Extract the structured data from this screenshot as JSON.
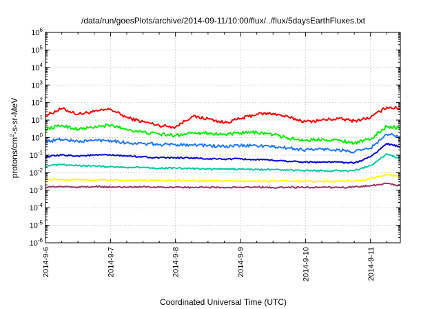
{
  "chart_data": {
    "type": "line",
    "title": "/data/run/goesPlots/archive/2014-09-11/10:00/flux/../flux/5daysEarthFluxes.txt",
    "xlabel": "Coordinated Universal Time (UTC)",
    "ylabel": "protons/cm2-s-sr-MeV",
    "ylabel_parts": {
      "base": "protons/cm",
      "sup": "2",
      "rest": "-s-sr-MeV"
    },
    "yscale": "log",
    "ylim": [
      1e-06,
      1000000.0
    ],
    "y_tick_labels": [
      {
        "value": 1e-06,
        "base": "10",
        "exp": "-6"
      },
      {
        "value": 1e-05,
        "base": "10",
        "exp": "-5"
      },
      {
        "value": 0.0001,
        "base": "10",
        "exp": "-4"
      },
      {
        "value": 0.001,
        "base": "10",
        "exp": "-3"
      },
      {
        "value": 0.01,
        "base": "10",
        "exp": "-2"
      },
      {
        "value": 0.1,
        "base": "10",
        "exp": "-1"
      },
      {
        "value": 1,
        "base": "10",
        "exp": "0"
      },
      {
        "value": 10.0,
        "base": "10",
        "exp": "1"
      },
      {
        "value": 100.0,
        "base": "10",
        "exp": "2"
      },
      {
        "value": 1000.0,
        "base": "10",
        "exp": "3"
      },
      {
        "value": 10000.0,
        "base": "10",
        "exp": "4"
      },
      {
        "value": 100000.0,
        "base": "10",
        "exp": "5"
      },
      {
        "value": 1000000.0,
        "base": "10",
        "exp": "6"
      }
    ],
    "xlim": [
      "2014-09-06 00:00",
      "2014-09-11 11:00"
    ],
    "x_ticks": [
      "2014-9-6",
      "2014-9-7",
      "2014-9-8",
      "2014-9-9",
      "2014-9-10",
      "2014-9-11"
    ],
    "x_tick_dates": [
      "2014-09-06",
      "2014-09-07",
      "2014-09-08",
      "2014-09-09",
      "2014-09-10",
      "2014-09-11"
    ],
    "grid": true,
    "legend": "none",
    "series": [
      {
        "color": "#ff0000",
        "x": [
          "2014-09-06 00:00",
          "2014-09-06 06:00",
          "2014-09-06 12:00",
          "2014-09-06 18:00",
          "2014-09-07 00:00",
          "2014-09-07 06:00",
          "2014-09-07 12:00",
          "2014-09-07 18:00",
          "2014-09-08 00:00",
          "2014-09-08 06:00",
          "2014-09-08 12:00",
          "2014-09-08 18:00",
          "2014-09-09 00:00",
          "2014-09-09 06:00",
          "2014-09-09 12:00",
          "2014-09-09 18:00",
          "2014-09-10 00:00",
          "2014-09-10 06:00",
          "2014-09-10 12:00",
          "2014-09-10 18:00",
          "2014-09-11 00:00",
          "2014-09-11 06:00",
          "2014-09-11 11:00"
        ],
        "values": [
          18,
          45,
          22,
          30,
          42,
          14,
          8,
          5,
          4,
          16,
          12,
          7,
          12,
          22,
          24,
          14,
          8,
          10,
          12,
          9,
          14,
          55,
          45
        ]
      },
      {
        "color": "#00ee00",
        "x": [
          "2014-09-06 00:00",
          "2014-09-06 06:00",
          "2014-09-06 12:00",
          "2014-09-06 18:00",
          "2014-09-07 00:00",
          "2014-09-07 06:00",
          "2014-09-07 12:00",
          "2014-09-07 18:00",
          "2014-09-08 00:00",
          "2014-09-08 06:00",
          "2014-09-08 12:00",
          "2014-09-08 18:00",
          "2014-09-09 00:00",
          "2014-09-09 06:00",
          "2014-09-09 12:00",
          "2014-09-09 18:00",
          "2014-09-10 00:00",
          "2014-09-10 06:00",
          "2014-09-10 12:00",
          "2014-09-10 18:00",
          "2014-09-11 00:00",
          "2014-09-11 06:00",
          "2014-09-11 11:00"
        ],
        "values": [
          3,
          5,
          3,
          4,
          5,
          3,
          2,
          1.6,
          1.3,
          2,
          1.8,
          1.5,
          1.8,
          2,
          1.5,
          0.9,
          0.7,
          0.8,
          0.7,
          0.5,
          0.8,
          4.5,
          3.5
        ]
      },
      {
        "color": "#1e78ff",
        "x": [
          "2014-09-06 00:00",
          "2014-09-06 06:00",
          "2014-09-06 12:00",
          "2014-09-06 18:00",
          "2014-09-07 00:00",
          "2014-09-07 06:00",
          "2014-09-07 12:00",
          "2014-09-07 18:00",
          "2014-09-08 00:00",
          "2014-09-08 06:00",
          "2014-09-08 12:00",
          "2014-09-08 18:00",
          "2014-09-09 00:00",
          "2014-09-09 06:00",
          "2014-09-09 12:00",
          "2014-09-09 18:00",
          "2014-09-10 00:00",
          "2014-09-10 06:00",
          "2014-09-10 12:00",
          "2014-09-10 18:00",
          "2014-09-11 00:00",
          "2014-09-11 06:00",
          "2014-09-11 11:00"
        ],
        "values": [
          0.6,
          0.8,
          0.6,
          0.7,
          0.7,
          0.5,
          0.45,
          0.4,
          0.4,
          0.4,
          0.35,
          0.3,
          0.35,
          0.35,
          0.3,
          0.25,
          0.2,
          0.22,
          0.2,
          0.15,
          0.25,
          1.5,
          1.2
        ]
      },
      {
        "color": "#0000d8",
        "x": [
          "2014-09-06 00:00",
          "2014-09-06 06:00",
          "2014-09-06 12:00",
          "2014-09-06 18:00",
          "2014-09-07 00:00",
          "2014-09-07 06:00",
          "2014-09-07 12:00",
          "2014-09-07 18:00",
          "2014-09-08 00:00",
          "2014-09-08 06:00",
          "2014-09-08 12:00",
          "2014-09-08 18:00",
          "2014-09-09 00:00",
          "2014-09-09 06:00",
          "2014-09-09 12:00",
          "2014-09-09 18:00",
          "2014-09-10 00:00",
          "2014-09-10 06:00",
          "2014-09-10 12:00",
          "2014-09-10 18:00",
          "2014-09-11 00:00",
          "2014-09-11 06:00",
          "2014-09-11 11:00"
        ],
        "values": [
          0.08,
          0.1,
          0.09,
          0.1,
          0.1,
          0.09,
          0.08,
          0.07,
          0.07,
          0.07,
          0.06,
          0.06,
          0.06,
          0.055,
          0.05,
          0.045,
          0.04,
          0.04,
          0.04,
          0.035,
          0.08,
          0.45,
          0.3
        ]
      },
      {
        "color": "#00c8a0",
        "x": [
          "2014-09-06 00:00",
          "2014-09-06 06:00",
          "2014-09-06 12:00",
          "2014-09-06 18:00",
          "2014-09-07 00:00",
          "2014-09-07 06:00",
          "2014-09-07 12:00",
          "2014-09-07 18:00",
          "2014-09-08 00:00",
          "2014-09-08 06:00",
          "2014-09-08 12:00",
          "2014-09-08 18:00",
          "2014-09-09 00:00",
          "2014-09-09 06:00",
          "2014-09-09 12:00",
          "2014-09-09 18:00",
          "2014-09-10 00:00",
          "2014-09-10 06:00",
          "2014-09-10 12:00",
          "2014-09-10 18:00",
          "2014-09-11 00:00",
          "2014-09-11 06:00",
          "2014-09-11 11:00"
        ],
        "values": [
          0.025,
          0.028,
          0.025,
          0.024,
          0.022,
          0.02,
          0.02,
          0.018,
          0.018,
          0.017,
          0.016,
          0.016,
          0.016,
          0.015,
          0.015,
          0.014,
          0.013,
          0.013,
          0.013,
          0.013,
          0.025,
          0.12,
          0.06
        ]
      },
      {
        "color": "#ffff00",
        "x": [
          "2014-09-06 00:00",
          "2014-09-06 06:00",
          "2014-09-06 12:00",
          "2014-09-06 18:00",
          "2014-09-07 00:00",
          "2014-09-07 06:00",
          "2014-09-07 12:00",
          "2014-09-07 18:00",
          "2014-09-08 00:00",
          "2014-09-08 06:00",
          "2014-09-08 12:00",
          "2014-09-08 18:00",
          "2014-09-09 00:00",
          "2014-09-09 06:00",
          "2014-09-09 12:00",
          "2014-09-09 18:00",
          "2014-09-10 00:00",
          "2014-09-10 06:00",
          "2014-09-10 12:00",
          "2014-09-10 18:00",
          "2014-09-11 00:00",
          "2014-09-11 06:00",
          "2014-09-11 11:00"
        ],
        "values": [
          0.004,
          0.004,
          0.004,
          0.0038,
          0.0038,
          0.0036,
          0.0036,
          0.0035,
          0.0035,
          0.0035,
          0.0034,
          0.0034,
          0.0034,
          0.0033,
          0.0033,
          0.0033,
          0.0032,
          0.0032,
          0.0032,
          0.0032,
          0.0045,
          0.008,
          0.006
        ]
      },
      {
        "color": "#993366",
        "x": [
          "2014-09-06 00:00",
          "2014-09-06 06:00",
          "2014-09-06 12:00",
          "2014-09-06 18:00",
          "2014-09-07 00:00",
          "2014-09-07 06:00",
          "2014-09-07 12:00",
          "2014-09-07 18:00",
          "2014-09-08 00:00",
          "2014-09-08 06:00",
          "2014-09-08 12:00",
          "2014-09-08 18:00",
          "2014-09-09 00:00",
          "2014-09-09 06:00",
          "2014-09-09 12:00",
          "2014-09-09 18:00",
          "2014-09-10 00:00",
          "2014-09-10 06:00",
          "2014-09-10 12:00",
          "2014-09-10 18:00",
          "2014-09-11 00:00",
          "2014-09-11 06:00",
          "2014-09-11 11:00"
        ],
        "values": [
          0.0015,
          0.0016,
          0.0015,
          0.0016,
          0.0015,
          0.0015,
          0.0016,
          0.0015,
          0.0015,
          0.0014,
          0.0015,
          0.0014,
          0.0015,
          0.0015,
          0.0014,
          0.0015,
          0.0014,
          0.0015,
          0.0014,
          0.0015,
          0.0018,
          0.0025,
          0.0018
        ]
      }
    ]
  }
}
